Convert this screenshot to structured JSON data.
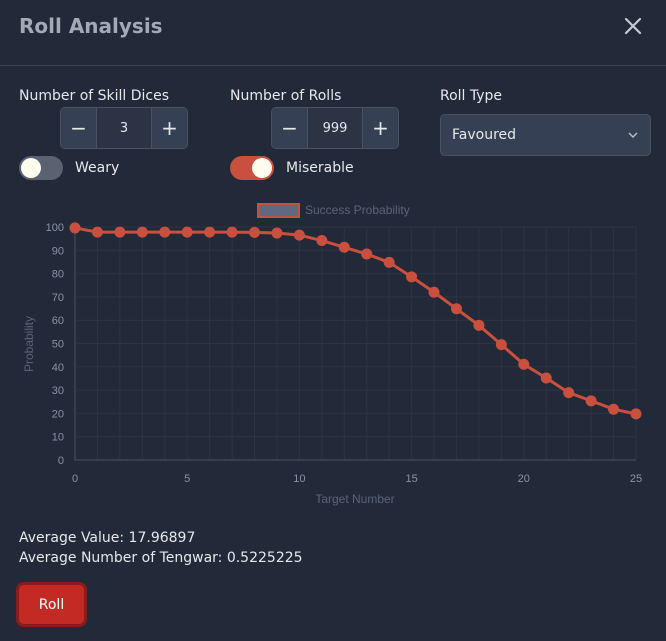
{
  "dialog": {
    "title": "Roll Analysis"
  },
  "controls": {
    "skill_dices": {
      "label": "Number of Skill Dices",
      "value": "3",
      "minus": "−",
      "plus": "+"
    },
    "rolls": {
      "label": "Number of Rolls",
      "value": "999",
      "minus": "−",
      "plus": "+"
    },
    "roll_type": {
      "label": "Roll Type",
      "selected": "Favoured"
    },
    "weary": {
      "label": "Weary",
      "checked": false
    },
    "miserable": {
      "label": "Miserable",
      "checked": true
    }
  },
  "chart_data": {
    "type": "line",
    "title": "",
    "series": [
      {
        "name": "Success Probability",
        "x": [
          0,
          1,
          2,
          3,
          4,
          5,
          6,
          7,
          8,
          9,
          10,
          11,
          12,
          13,
          14,
          15,
          16,
          17,
          18,
          19,
          20,
          21,
          22,
          23,
          24,
          25
        ],
        "values": [
          99.6,
          97.8,
          97.8,
          97.8,
          97.8,
          97.8,
          97.8,
          97.8,
          97.7,
          97.4,
          96.5,
          94.2,
          91.3,
          88.4,
          84.8,
          78.6,
          72.0,
          64.9,
          57.8,
          49.5,
          41.1,
          35.2,
          28.9,
          25.4,
          21.8,
          19.8
        ]
      }
    ],
    "xlabel": "Target Number",
    "ylabel": "Probability",
    "xlim": [
      0,
      25
    ],
    "ylim": [
      0,
      100
    ],
    "xticks": [
      "0",
      "5",
      "10",
      "15",
      "20",
      "25"
    ],
    "yticks": [
      "0",
      "10",
      "20",
      "30",
      "40",
      "50",
      "60",
      "70",
      "80",
      "90",
      "100"
    ],
    "grid": true,
    "legend": "top-center",
    "color": "#c9503e"
  },
  "stats": {
    "average_value": "Average Value: 17.96897",
    "average_tengwar": "Average Number of Tengwar: 0.5225225"
  },
  "actions": {
    "roll_label": "Roll"
  }
}
